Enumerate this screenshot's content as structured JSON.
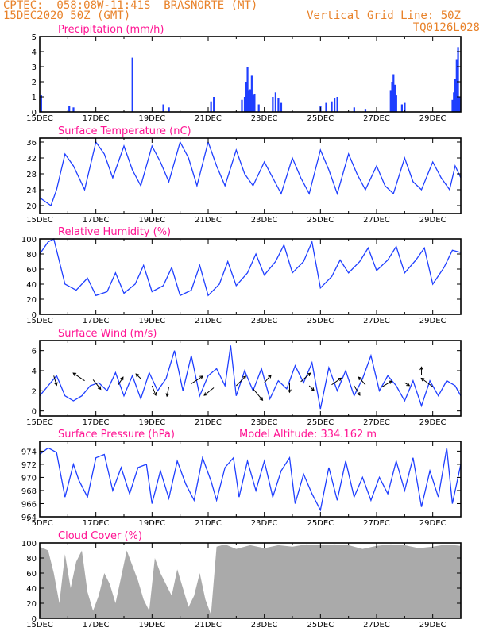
{
  "header": {
    "line1": "CPTEC:  058:08W-11:41S  BRASNORTE (MT)",
    "line2": "15DEC2020 50Z (GMT)",
    "grid_note": "Vertical Grid Line: 50Z",
    "code": "TQ0126L028"
  },
  "colors": {
    "header": "#e8822a",
    "title": "#ff1493",
    "series": "#1f3fff",
    "cloud": "#aaaaaa"
  },
  "chart_data": [
    {
      "type": "bar",
      "title": "Precipitation (mm/h)",
      "x_ticks": [
        "15DEC",
        "17DEC",
        "19DEC",
        "21DEC",
        "23DEC",
        "25DEC",
        "27DEC",
        "29DEC"
      ],
      "ylim": [
        0,
        5
      ],
      "y_ticks": [
        0,
        1,
        2,
        3,
        4,
        5
      ],
      "x_day_range": [
        0,
        15
      ],
      "spikes": [
        [
          0.05,
          1.1
        ],
        [
          1.05,
          0.4
        ],
        [
          1.2,
          0.3
        ],
        [
          3.3,
          3.6
        ],
        [
          4.4,
          0.5
        ],
        [
          4.6,
          0.3
        ],
        [
          6.1,
          0.7
        ],
        [
          6.2,
          1.0
        ],
        [
          7.2,
          0.8
        ],
        [
          7.3,
          1.0
        ],
        [
          7.35,
          2.0
        ],
        [
          7.4,
          3.0
        ],
        [
          7.45,
          1.4
        ],
        [
          7.5,
          1.5
        ],
        [
          7.55,
          2.4
        ],
        [
          7.6,
          1.1
        ],
        [
          7.65,
          1.2
        ],
        [
          7.8,
          0.5
        ],
        [
          8.3,
          1.0
        ],
        [
          8.4,
          1.3
        ],
        [
          8.5,
          0.9
        ],
        [
          8.6,
          0.6
        ],
        [
          10.0,
          0.4
        ],
        [
          10.2,
          0.6
        ],
        [
          10.4,
          0.7
        ],
        [
          10.5,
          0.9
        ],
        [
          10.6,
          1.0
        ],
        [
          11.2,
          0.3
        ],
        [
          11.6,
          0.2
        ],
        [
          12.5,
          1.4
        ],
        [
          12.55,
          2.0
        ],
        [
          12.6,
          2.5
        ],
        [
          12.65,
          1.8
        ],
        [
          12.7,
          1.1
        ],
        [
          12.9,
          0.5
        ],
        [
          13.0,
          0.6
        ],
        [
          14.7,
          0.8
        ],
        [
          14.75,
          1.3
        ],
        [
          14.8,
          2.2
        ],
        [
          14.85,
          3.5
        ],
        [
          14.9,
          4.3
        ],
        [
          14.95,
          1.0
        ]
      ]
    },
    {
      "type": "line",
      "title": "Surface Temperature (nC)",
      "x_ticks": [
        "15DEC",
        "17DEC",
        "19DEC",
        "21DEC",
        "23DEC",
        "25DEC",
        "27DEC",
        "29DEC"
      ],
      "ylim": [
        18,
        37
      ],
      "y_ticks": [
        20,
        24,
        28,
        32,
        36
      ],
      "x_day_range": [
        0,
        15
      ],
      "points": [
        [
          0,
          22
        ],
        [
          0.4,
          20
        ],
        [
          0.6,
          24
        ],
        [
          0.9,
          33
        ],
        [
          1.2,
          30
        ],
        [
          1.4,
          27
        ],
        [
          1.6,
          24
        ],
        [
          2.0,
          36
        ],
        [
          2.3,
          33
        ],
        [
          2.6,
          27
        ],
        [
          3.0,
          35
        ],
        [
          3.3,
          29
        ],
        [
          3.6,
          25
        ],
        [
          4.0,
          35
        ],
        [
          4.3,
          31
        ],
        [
          4.6,
          26
        ],
        [
          5.0,
          36
        ],
        [
          5.3,
          32
        ],
        [
          5.6,
          25
        ],
        [
          6.0,
          36
        ],
        [
          6.3,
          30
        ],
        [
          6.6,
          25
        ],
        [
          7.0,
          34
        ],
        [
          7.3,
          28
        ],
        [
          7.6,
          25
        ],
        [
          8.0,
          31
        ],
        [
          8.3,
          27
        ],
        [
          8.6,
          23
        ],
        [
          9.0,
          32
        ],
        [
          9.3,
          27
        ],
        [
          9.6,
          23
        ],
        [
          10.0,
          34
        ],
        [
          10.3,
          29
        ],
        [
          10.6,
          23
        ],
        [
          11.0,
          33
        ],
        [
          11.3,
          28
        ],
        [
          11.6,
          24
        ],
        [
          12.0,
          30
        ],
        [
          12.3,
          25
        ],
        [
          12.6,
          23
        ],
        [
          13.0,
          32
        ],
        [
          13.3,
          26
        ],
        [
          13.6,
          24
        ],
        [
          14.0,
          31
        ],
        [
          14.3,
          27
        ],
        [
          14.6,
          24
        ],
        [
          14.8,
          30
        ],
        [
          15.0,
          27
        ]
      ]
    },
    {
      "type": "line",
      "title": "Relative Humidity (%)",
      "x_ticks": [
        "15DEC",
        "17DEC",
        "19DEC",
        "21DEC",
        "23DEC",
        "25DEC",
        "27DEC",
        "29DEC"
      ],
      "ylim": [
        0,
        100
      ],
      "y_ticks": [
        0,
        20,
        40,
        60,
        80,
        100
      ],
      "x_day_range": [
        0,
        15
      ],
      "points": [
        [
          0,
          80
        ],
        [
          0.3,
          96
        ],
        [
          0.5,
          100
        ],
        [
          0.9,
          40
        ],
        [
          1.3,
          32
        ],
        [
          1.7,
          48
        ],
        [
          2.0,
          25
        ],
        [
          2.4,
          30
        ],
        [
          2.7,
          55
        ],
        [
          3.0,
          28
        ],
        [
          3.4,
          40
        ],
        [
          3.7,
          65
        ],
        [
          4.0,
          30
        ],
        [
          4.4,
          38
        ],
        [
          4.7,
          62
        ],
        [
          5.0,
          25
        ],
        [
          5.4,
          32
        ],
        [
          5.7,
          65
        ],
        [
          6.0,
          25
        ],
        [
          6.4,
          40
        ],
        [
          6.7,
          70
        ],
        [
          7.0,
          38
        ],
        [
          7.4,
          55
        ],
        [
          7.7,
          80
        ],
        [
          8.0,
          52
        ],
        [
          8.4,
          70
        ],
        [
          8.7,
          92
        ],
        [
          9.0,
          55
        ],
        [
          9.4,
          70
        ],
        [
          9.7,
          96
        ],
        [
          10.0,
          35
        ],
        [
          10.4,
          50
        ],
        [
          10.7,
          72
        ],
        [
          11.0,
          55
        ],
        [
          11.4,
          70
        ],
        [
          11.7,
          88
        ],
        [
          12.0,
          58
        ],
        [
          12.4,
          72
        ],
        [
          12.7,
          90
        ],
        [
          13.0,
          55
        ],
        [
          13.4,
          72
        ],
        [
          13.7,
          88
        ],
        [
          14.0,
          40
        ],
        [
          14.4,
          62
        ],
        [
          14.7,
          85
        ],
        [
          15.0,
          82
        ]
      ]
    },
    {
      "type": "line",
      "title": "Surface Wind (m/s)",
      "x_ticks": [
        "15DEC",
        "17DEC",
        "19DEC",
        "21DEC",
        "23DEC",
        "25DEC",
        "27DEC",
        "29DEC"
      ],
      "ylim": [
        -0.5,
        7
      ],
      "y_ticks": [
        0,
        2,
        4,
        6
      ],
      "x_day_range": [
        0,
        15
      ],
      "points": [
        [
          0,
          1.5
        ],
        [
          0.3,
          2.5
        ],
        [
          0.6,
          3.5
        ],
        [
          0.9,
          1.5
        ],
        [
          1.2,
          1.0
        ],
        [
          1.5,
          1.5
        ],
        [
          1.8,
          2.5
        ],
        [
          2.1,
          2.8
        ],
        [
          2.4,
          2.0
        ],
        [
          2.7,
          3.8
        ],
        [
          3.0,
          1.5
        ],
        [
          3.3,
          3.5
        ],
        [
          3.6,
          1.2
        ],
        [
          3.9,
          3.8
        ],
        [
          4.2,
          2.0
        ],
        [
          4.5,
          3.2
        ],
        [
          4.8,
          6.0
        ],
        [
          5.1,
          2.0
        ],
        [
          5.4,
          5.5
        ],
        [
          5.7,
          1.5
        ],
        [
          6.0,
          3.5
        ],
        [
          6.3,
          4.2
        ],
        [
          6.6,
          2.5
        ],
        [
          6.8,
          6.5
        ],
        [
          7.0,
          1.5
        ],
        [
          7.3,
          4.0
        ],
        [
          7.6,
          2.0
        ],
        [
          7.9,
          4.2
        ],
        [
          8.2,
          1.2
        ],
        [
          8.5,
          3.0
        ],
        [
          8.8,
          2.2
        ],
        [
          9.1,
          4.5
        ],
        [
          9.4,
          2.8
        ],
        [
          9.7,
          4.8
        ],
        [
          10.0,
          0.2
        ],
        [
          10.3,
          4.3
        ],
        [
          10.6,
          2.0
        ],
        [
          10.9,
          4.0
        ],
        [
          11.2,
          1.5
        ],
        [
          11.5,
          3.2
        ],
        [
          11.8,
          5.5
        ],
        [
          12.1,
          2.0
        ],
        [
          12.4,
          3.5
        ],
        [
          12.7,
          2.5
        ],
        [
          13.0,
          1.0
        ],
        [
          13.3,
          3.0
        ],
        [
          13.6,
          0.5
        ],
        [
          13.9,
          3.0
        ],
        [
          14.2,
          1.5
        ],
        [
          14.5,
          3.0
        ],
        [
          14.8,
          2.5
        ],
        [
          15.0,
          1.5
        ]
      ],
      "barbs": [
        [
          0.5,
          3.5,
          0.3,
          1.0
        ],
        [
          1.6,
          3.0,
          -1.2,
          -0.8
        ],
        [
          1.9,
          3.1,
          0.8,
          1.0
        ],
        [
          2.8,
          2.6,
          0.5,
          -0.8
        ],
        [
          3.6,
          3.2,
          -0.5,
          -0.5
        ],
        [
          4.0,
          2.5,
          0.4,
          1.0
        ],
        [
          4.6,
          2.4,
          -0.2,
          1.0
        ],
        [
          5.4,
          2.7,
          1.2,
          -0.8
        ],
        [
          6.2,
          2.3,
          -1.0,
          0.8
        ],
        [
          7.0,
          2.5,
          1.0,
          -1.0
        ],
        [
          7.6,
          2.2,
          1.0,
          1.2
        ],
        [
          8.0,
          2.8,
          0.7,
          -0.8
        ],
        [
          8.9,
          2.8,
          0.0,
          1.0
        ],
        [
          9.3,
          2.9,
          1.0,
          -0.9
        ],
        [
          9.6,
          2.5,
          0.5,
          0.5
        ],
        [
          10.4,
          2.6,
          1.0,
          -0.7
        ],
        [
          11.2,
          2.5,
          0.6,
          1.0
        ],
        [
          11.6,
          2.6,
          -0.7,
          -0.8
        ],
        [
          12.2,
          2.4,
          1.0,
          -0.6
        ],
        [
          13.0,
          2.8,
          0.5,
          0.3
        ],
        [
          13.6,
          3.6,
          0.0,
          -0.8
        ],
        [
          14.0,
          2.4,
          -1.2,
          -0.9
        ]
      ]
    },
    {
      "type": "line",
      "title": "Surface Pressure (hPa)",
      "annotation": "Model Altitude: 334.162 m",
      "x_ticks": [
        "15DEC",
        "17DEC",
        "19DEC",
        "21DEC",
        "23DEC",
        "25DEC",
        "27DEC",
        "29DEC"
      ],
      "ylim": [
        964,
        975.5
      ],
      "y_ticks": [
        964,
        966,
        968,
        970,
        972,
        974
      ],
      "x_day_range": [
        0,
        15
      ],
      "points": [
        [
          0,
          973.5
        ],
        [
          0.3,
          974.5
        ],
        [
          0.6,
          973.8
        ],
        [
          0.9,
          967
        ],
        [
          1.2,
          972
        ],
        [
          1.4,
          969.5
        ],
        [
          1.7,
          967
        ],
        [
          2.0,
          973
        ],
        [
          2.3,
          973.5
        ],
        [
          2.6,
          968
        ],
        [
          2.9,
          971.5
        ],
        [
          3.2,
          967.5
        ],
        [
          3.5,
          971.5
        ],
        [
          3.8,
          972
        ],
        [
          4.0,
          966
        ],
        [
          4.3,
          971
        ],
        [
          4.6,
          966.8
        ],
        [
          4.9,
          972.5
        ],
        [
          5.2,
          969
        ],
        [
          5.5,
          966.5
        ],
        [
          5.8,
          973
        ],
        [
          6.1,
          969.5
        ],
        [
          6.3,
          966.5
        ],
        [
          6.6,
          971.5
        ],
        [
          6.9,
          973
        ],
        [
          7.1,
          967
        ],
        [
          7.4,
          972.5
        ],
        [
          7.7,
          968
        ],
        [
          8.0,
          972.5
        ],
        [
          8.3,
          967
        ],
        [
          8.6,
          971
        ],
        [
          8.9,
          973
        ],
        [
          9.1,
          966
        ],
        [
          9.4,
          970.5
        ],
        [
          9.7,
          967.5
        ],
        [
          10.0,
          965
        ],
        [
          10.3,
          971.5
        ],
        [
          10.6,
          966.5
        ],
        [
          10.9,
          972.5
        ],
        [
          11.2,
          967
        ],
        [
          11.5,
          970
        ],
        [
          11.8,
          966.5
        ],
        [
          12.1,
          970
        ],
        [
          12.4,
          967.5
        ],
        [
          12.7,
          972.5
        ],
        [
          13.0,
          968
        ],
        [
          13.3,
          973
        ],
        [
          13.6,
          965.5
        ],
        [
          13.9,
          971
        ],
        [
          14.2,
          967
        ],
        [
          14.5,
          974.5
        ],
        [
          14.7,
          966
        ],
        [
          15.0,
          972
        ]
      ]
    },
    {
      "type": "area",
      "title": "Cloud Cover (%)",
      "x_ticks": [
        "15DEC",
        "17DEC",
        "19DEC",
        "21DEC",
        "23DEC",
        "25DEC",
        "27DEC",
        "29DEC"
      ],
      "ylim": [
        0,
        100
      ],
      "y_ticks": [
        0,
        20,
        40,
        60,
        80,
        100
      ],
      "x_day_range": [
        0,
        15
      ],
      "points": [
        [
          0,
          95
        ],
        [
          0.3,
          90
        ],
        [
          0.5,
          60
        ],
        [
          0.7,
          20
        ],
        [
          0.9,
          85
        ],
        [
          1.1,
          40
        ],
        [
          1.3,
          75
        ],
        [
          1.5,
          90
        ],
        [
          1.7,
          35
        ],
        [
          1.9,
          10
        ],
        [
          2.1,
          30
        ],
        [
          2.3,
          60
        ],
        [
          2.5,
          45
        ],
        [
          2.7,
          20
        ],
        [
          2.9,
          55
        ],
        [
          3.1,
          90
        ],
        [
          3.3,
          70
        ],
        [
          3.5,
          50
        ],
        [
          3.7,
          25
        ],
        [
          3.9,
          10
        ],
        [
          4.1,
          80
        ],
        [
          4.3,
          60
        ],
        [
          4.5,
          45
        ],
        [
          4.7,
          30
        ],
        [
          4.9,
          65
        ],
        [
          5.1,
          40
        ],
        [
          5.3,
          15
        ],
        [
          5.5,
          30
        ],
        [
          5.7,
          60
        ],
        [
          5.9,
          25
        ],
        [
          6.1,
          5
        ],
        [
          6.3,
          95
        ],
        [
          6.6,
          98
        ],
        [
          7.0,
          92
        ],
        [
          7.5,
          97
        ],
        [
          8.0,
          93
        ],
        [
          8.5,
          97
        ],
        [
          9.0,
          95
        ],
        [
          9.5,
          98
        ],
        [
          10.0,
          97
        ],
        [
          10.5,
          98
        ],
        [
          11.0,
          97
        ],
        [
          11.5,
          92
        ],
        [
          12.0,
          96
        ],
        [
          12.5,
          98
        ],
        [
          13.0,
          97
        ],
        [
          13.5,
          93
        ],
        [
          14.0,
          95
        ],
        [
          14.5,
          98
        ],
        [
          15.0,
          96
        ]
      ]
    }
  ]
}
